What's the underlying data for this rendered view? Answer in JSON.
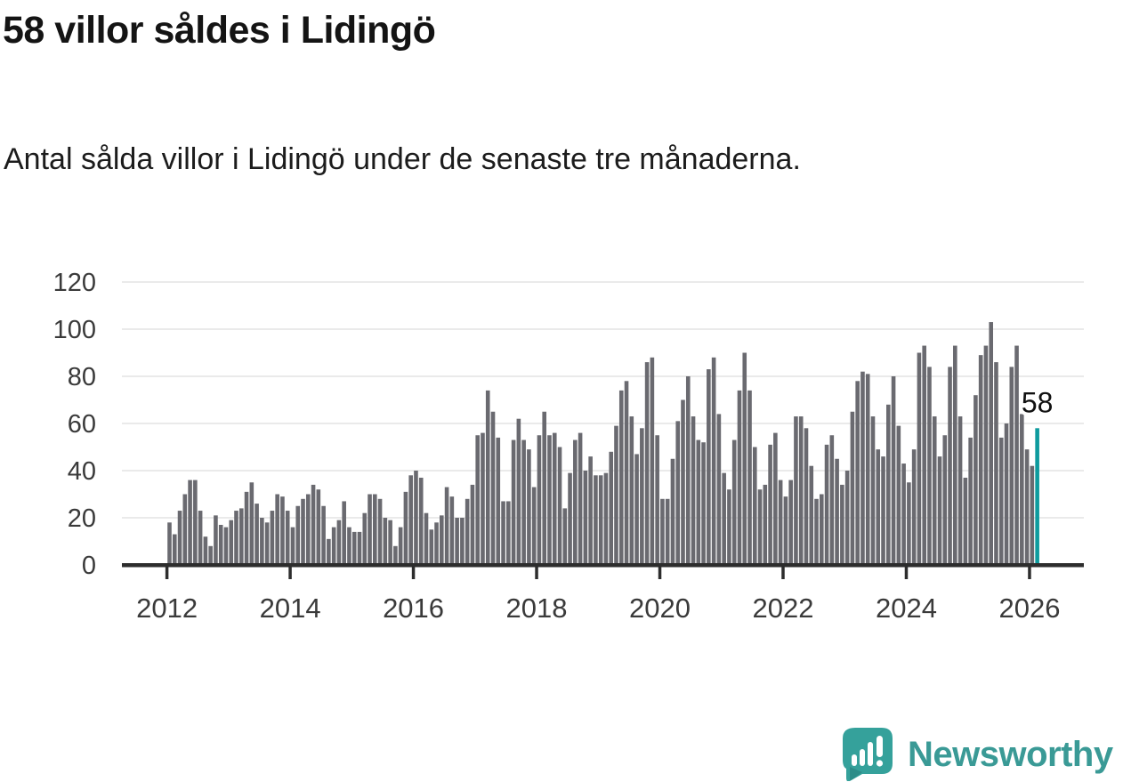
{
  "header": {
    "title": "58 villor såldes i Lidingö",
    "subtitle": "Antal sålda villor i Lidingö under de senaste tre månaderna."
  },
  "chart_data": {
    "type": "bar",
    "title": "58 villor såldes i Lidingö",
    "subtitle": "Antal sålda villor i Lidingö under de senaste tre månaderna.",
    "unit": "sålda villor (rullande 3 månader)",
    "frequency": "monthly",
    "x_start": "2012-01",
    "x_end": "2026-02",
    "values": [
      18,
      13,
      23,
      30,
      36,
      36,
      23,
      12,
      8,
      21,
      17,
      16,
      19,
      23,
      24,
      31,
      35,
      26,
      20,
      18,
      23,
      30,
      29,
      23,
      16,
      25,
      28,
      30,
      34,
      32,
      25,
      11,
      16,
      19,
      27,
      16,
      14,
      14,
      22,
      30,
      30,
      28,
      20,
      19,
      8,
      16,
      31,
      38,
      40,
      37,
      22,
      15,
      18,
      21,
      33,
      29,
      20,
      20,
      28,
      34,
      55,
      56,
      74,
      65,
      54,
      27,
      27,
      53,
      62,
      53,
      49,
      33,
      55,
      65,
      55,
      56,
      50,
      24,
      39,
      53,
      56,
      40,
      46,
      38,
      38,
      39,
      48,
      59,
      74,
      78,
      63,
      47,
      58,
      86,
      88,
      55,
      28,
      28,
      45,
      61,
      70,
      80,
      63,
      53,
      52,
      83,
      88,
      64,
      39,
      32,
      53,
      74,
      90,
      74,
      50,
      32,
      34,
      51,
      56,
      36,
      29,
      36,
      63,
      63,
      58,
      42,
      28,
      30,
      51,
      55,
      45,
      34,
      40,
      65,
      78,
      82,
      81,
      63,
      49,
      46,
      68,
      80,
      59,
      43,
      35,
      49,
      90,
      93,
      84,
      63,
      46,
      55,
      84,
      93,
      63,
      37,
      54,
      72,
      89,
      93,
      103,
      86,
      54,
      60,
      84,
      93,
      64,
      49,
      42,
      58
    ],
    "highlight": {
      "index": 169,
      "value": 58,
      "label": "58"
    },
    "xticks": [
      "2012",
      "2014",
      "2016",
      "2018",
      "2020",
      "2022",
      "2024",
      "2026"
    ],
    "yticks": [
      0,
      20,
      40,
      60,
      80,
      100,
      120
    ],
    "ylim": [
      0,
      120
    ],
    "grid": true,
    "legend": "none",
    "colors": {
      "bar": "#6a6a70",
      "highlight": "#0e9b9e",
      "axis": "#2d2d2d",
      "gridline": "#e3e3e3",
      "tick_label": "#3a3a3a",
      "annotation_text": "#111111",
      "annotation_halo": "#ffffff"
    }
  },
  "annotation": {
    "label": "58"
  },
  "footer": {
    "brand": "Newsworthy",
    "brand_color": "#3a9a96",
    "logo_color": "#35a19b",
    "logo": "newsworthy-speech-bubble-bar-chart-icon"
  }
}
